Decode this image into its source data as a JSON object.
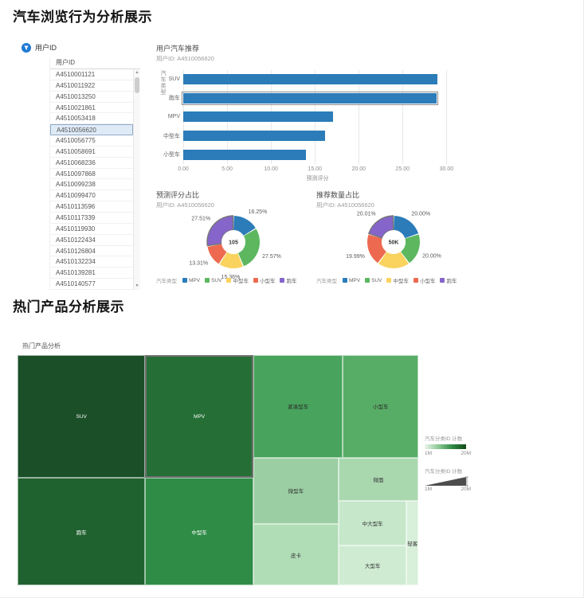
{
  "section1_title": "汽车浏览行为分析展示",
  "section2_title": "热门产品分析展示",
  "filter": {
    "icon": "funnel-icon",
    "label": "用户ID"
  },
  "user_list": {
    "header": "用户ID",
    "selected_id": "A4510056620",
    "items": [
      "A4510001121",
      "A4510011922",
      "A4510013250",
      "A4510021861",
      "A4510053418",
      "A4510056620",
      "A4510056775",
      "A4510058691",
      "A4510068236",
      "A4510097868",
      "A4510099238",
      "A4510099470",
      "A4510113596",
      "A4510117339",
      "A4510119930",
      "A4510122434",
      "A4510126804",
      "A4510132234",
      "A4510139281",
      "A4510140577"
    ],
    "scroll_up_glyph": "▲",
    "scroll_down_glyph": "▼"
  },
  "chart_data": [
    {
      "type": "bar",
      "orientation": "horizontal",
      "title": "用户汽车推荐",
      "subtitle": "用户ID: A4510056620",
      "categories": [
        "SUV",
        "跑车",
        "MPV",
        "中型车",
        "小型车"
      ],
      "values": [
        28.95,
        28.89,
        17.06,
        16.13,
        13.98
      ],
      "selected_category": "跑车",
      "bar_color": "#2b7cb9",
      "xlabel": "预测评分",
      "ylabel": "汽车类型",
      "xlim": [
        0,
        30.6
      ],
      "xticks": [
        {
          "v": 0,
          "label": "0.00"
        },
        {
          "v": 5,
          "label": "5.00"
        },
        {
          "v": 10,
          "label": "10.00"
        },
        {
          "v": 15,
          "label": "15.00"
        },
        {
          "v": 20,
          "label": "20.00"
        },
        {
          "v": 25,
          "label": "25.00"
        },
        {
          "v": 30,
          "label": "30.00"
        }
      ],
      "grid": true
    },
    {
      "type": "pie",
      "donut": true,
      "title": "预测评分占比",
      "subtitle": "用户ID: A4510056620",
      "center_label": "105",
      "legend_title": "汽车类型",
      "slices": [
        {
          "name": "MPV",
          "value": 16.25,
          "label": "16.25%",
          "color": "#2b7cb9",
          "selected": false
        },
        {
          "name": "SUV",
          "value": 27.57,
          "label": "27.57%",
          "color": "#5cb75f",
          "selected": false
        },
        {
          "name": "中型车",
          "value": 15.36,
          "label": "15.36%",
          "color": "#f9d35e",
          "selected": false
        },
        {
          "name": "小型车",
          "value": 13.31,
          "label": "13.31%",
          "color": "#ed6a50",
          "selected": false
        },
        {
          "name": "跑车",
          "value": 27.51,
          "label": "27.51%",
          "color": "#8565c9",
          "selected": true
        }
      ]
    },
    {
      "type": "pie",
      "donut": true,
      "title": "推荐数量占比",
      "subtitle": "用户ID: A4510056620",
      "center_label": "50K",
      "legend_title": "汽车类型",
      "slices": [
        {
          "name": "MPV",
          "value": 20.0,
          "label": "20.00%",
          "color": "#2b7cb9",
          "selected": false
        },
        {
          "name": "SUV",
          "value": 20.0,
          "label": "20.00%",
          "color": "#5cb75f",
          "selected": false
        },
        {
          "name": "中型车",
          "value": 20.0,
          "label": "",
          "color": "#f9d35e",
          "selected": false
        },
        {
          "name": "小型车",
          "value": 19.99,
          "label": "19.99%",
          "color": "#ed6a50",
          "selected": false
        },
        {
          "name": "跑车",
          "value": 20.01,
          "label": "20.01%",
          "color": "#8565c9",
          "selected": true
        }
      ]
    },
    {
      "type": "treemap",
      "title": "热门产品分析",
      "cells": [
        {
          "name": "SUV",
          "x": 0,
          "y": 0,
          "w": 31.9,
          "h": 53.3,
          "color": "#1a4f28",
          "text": "#ffffff",
          "selected": false
        },
        {
          "name": "MPV",
          "x": 31.9,
          "y": 0,
          "w": 26.9,
          "h": 53.3,
          "color": "#256f37",
          "text": "#ffffff",
          "selected": true
        },
        {
          "name": "紧凑型车",
          "x": 58.8,
          "y": 0,
          "w": 22.4,
          "h": 44.5,
          "color": "#48a35c",
          "text": "#2b2b2b",
          "selected": false
        },
        {
          "name": "小型车",
          "x": 81.2,
          "y": 0,
          "w": 18.8,
          "h": 44.5,
          "color": "#58ad66",
          "text": "#2b2b2b",
          "selected": false
        },
        {
          "name": "跑车",
          "x": 0,
          "y": 53.3,
          "w": 31.9,
          "h": 46.7,
          "color": "#1f622f",
          "text": "#ffffff",
          "selected": false
        },
        {
          "name": "中型车",
          "x": 31.9,
          "y": 53.3,
          "w": 26.9,
          "h": 46.7,
          "color": "#2e8c46",
          "text": "#ffffff",
          "selected": false
        },
        {
          "name": "微型车",
          "x": 58.8,
          "y": 44.5,
          "w": 21.3,
          "h": 28.9,
          "color": "#9bcfa3",
          "text": "#333333",
          "selected": false
        },
        {
          "name": "微面",
          "x": 80.1,
          "y": 44.5,
          "w": 19.9,
          "h": 18.8,
          "color": "#a9d8af",
          "text": "#333333",
          "selected": false
        },
        {
          "name": "中大型车",
          "x": 80.1,
          "y": 63.3,
          "w": 17.0,
          "h": 19.5,
          "color": "#c6e7ca",
          "text": "#333333",
          "selected": false
        },
        {
          "name": "大型车",
          "x": 80.1,
          "y": 82.8,
          "w": 17.0,
          "h": 17.2,
          "color": "#cfebd2",
          "text": "#333333",
          "selected": false
        },
        {
          "name": "皮卡",
          "x": 58.8,
          "y": 73.4,
          "w": 21.3,
          "h": 26.6,
          "color": "#b0dcb6",
          "text": "#333333",
          "selected": false
        },
        {
          "name": "轻客",
          "x": 97.1,
          "y": 63.3,
          "w": 2.9,
          "h": 36.7,
          "color": "#d8efda",
          "text": "#333333",
          "selected": false
        }
      ],
      "legends": [
        {
          "kind": "gradient",
          "title": "汽车分类ID 计数",
          "min": "1M",
          "max": "20M",
          "stops": [
            "#eaf5ea",
            "#8cc795",
            "#2f8a44",
            "#124c1b"
          ]
        },
        {
          "kind": "size",
          "title": "汽车分类ID 计数",
          "min": "1M",
          "max": "20M",
          "color": "#4d4d4d"
        }
      ]
    }
  ]
}
